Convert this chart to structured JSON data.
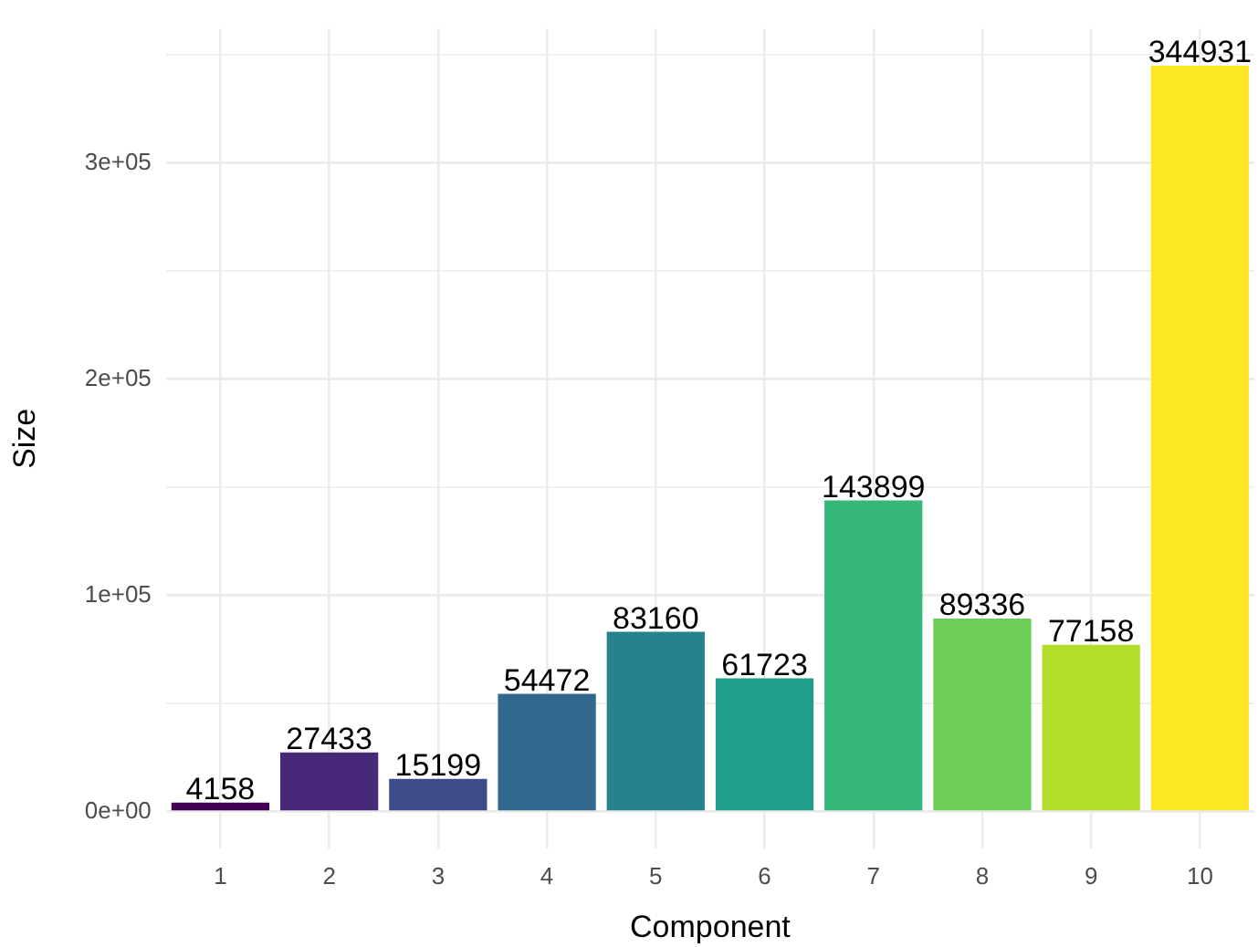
{
  "chart_data": {
    "type": "bar",
    "xlabel": "Component",
    "ylabel": "Size",
    "categories": [
      "1",
      "2",
      "3",
      "4",
      "5",
      "6",
      "7",
      "8",
      "9",
      "10"
    ],
    "values": [
      4158,
      27433,
      15199,
      54472,
      83160,
      61723,
      143899,
      89336,
      77158,
      344931
    ],
    "colors": [
      "#440154",
      "#482878",
      "#3e4a89",
      "#31688e",
      "#26828e",
      "#1f9e89",
      "#35b779",
      "#6dcd59",
      "#b4de2c",
      "#fde725"
    ],
    "ylim": [
      -17000,
      362000
    ],
    "yticks": [
      {
        "value": 0,
        "label": "0e+00"
      },
      {
        "value": 50000,
        "label": null
      },
      {
        "value": 100000,
        "label": "1e+05"
      },
      {
        "value": 150000,
        "label": null
      },
      {
        "value": 200000,
        "label": "2e+05"
      },
      {
        "value": 250000,
        "label": null
      },
      {
        "value": 300000,
        "label": "3e+05"
      },
      {
        "value": 350000,
        "label": null
      }
    ],
    "grid": true,
    "legend": false,
    "data_labels": true
  }
}
